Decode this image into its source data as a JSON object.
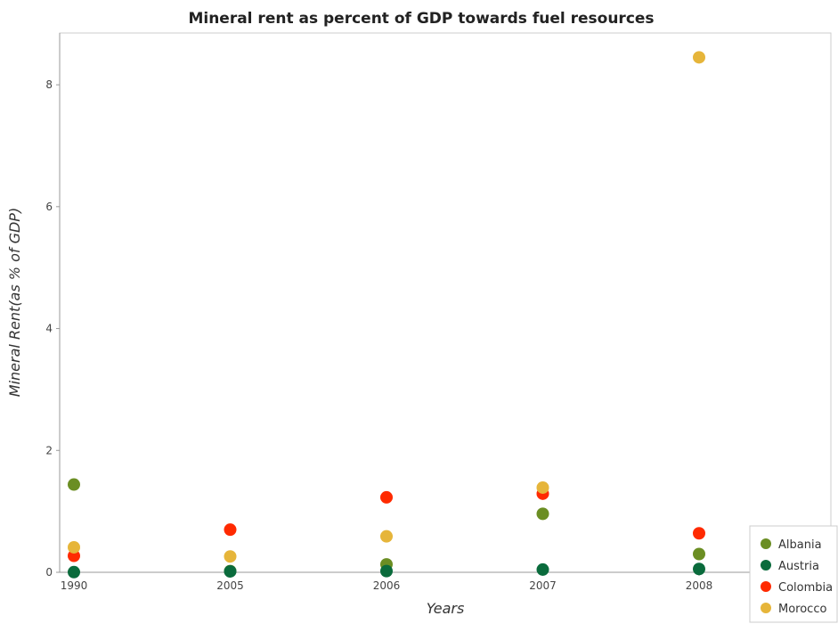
{
  "chart_data": {
    "type": "scatter",
    "title": "Mineral rent as percent of GDP towards fuel resources",
    "xlabel": "Years",
    "ylabel": "Mineral Rent(as % of GDP)",
    "categories": [
      "1990",
      "2005",
      "2006",
      "2007",
      "2008"
    ],
    "ylim": [
      0,
      8.85
    ],
    "yticks": [
      0,
      2,
      4,
      6,
      8
    ],
    "grid": false,
    "legend_position": "bottom-right",
    "series": [
      {
        "name": "Albania",
        "color": "#6b8e23",
        "values": [
          1.44,
          0.02,
          0.13,
          0.96,
          0.3
        ]
      },
      {
        "name": "Austria",
        "color": "#0a6b3c",
        "values": [
          0.003,
          0.015,
          0.02,
          0.045,
          0.055
        ]
      },
      {
        "name": "Colombia",
        "color": "#ff2a00",
        "values": [
          0.27,
          0.7,
          1.23,
          1.29,
          0.64
        ]
      },
      {
        "name": "Morocco",
        "color": "#e6b53a",
        "values": [
          0.41,
          0.26,
          0.59,
          1.39,
          8.45
        ]
      }
    ]
  }
}
